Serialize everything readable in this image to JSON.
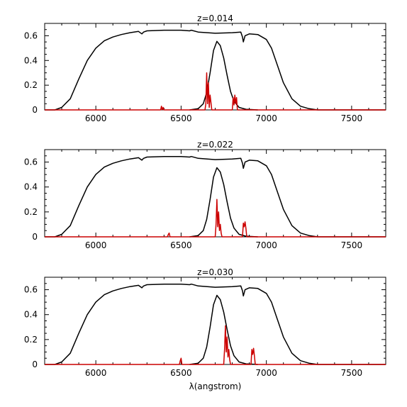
{
  "chart_data": [
    {
      "type": "line",
      "title": "z=0.014",
      "xlabel": "",
      "ylabel": "",
      "xlim": [
        5700,
        7700
      ],
      "ylim": [
        0,
        0.7
      ],
      "xticks": [
        6000,
        6500,
        7000,
        7500
      ],
      "yticks": [
        0,
        0.2,
        0.4,
        0.6
      ],
      "grid": false,
      "series": [
        {
          "color": "#000000",
          "x": [
            5700,
            5760,
            5800,
            5850,
            5900,
            5950,
            6000,
            6050,
            6100,
            6150,
            6200,
            6250,
            6270,
            6280,
            6300,
            6400,
            6500,
            6550,
            6560,
            6600,
            6700,
            6800,
            6850,
            6860,
            6865,
            6875,
            6900,
            6950,
            7000,
            7030,
            7060,
            7100,
            7150,
            7200,
            7250,
            7300,
            7400,
            7500,
            7700
          ],
          "y": [
            0,
            0,
            0.02,
            0.09,
            0.25,
            0.4,
            0.5,
            0.56,
            0.59,
            0.61,
            0.625,
            0.635,
            0.615,
            0.63,
            0.64,
            0.645,
            0.645,
            0.64,
            0.645,
            0.63,
            0.62,
            0.625,
            0.63,
            0.59,
            0.55,
            0.6,
            0.615,
            0.61,
            0.57,
            0.5,
            0.38,
            0.22,
            0.09,
            0.03,
            0.01,
            0,
            0,
            0,
            0
          ]
        },
        {
          "color": "#000000",
          "x": [
            6550,
            6600,
            6630,
            6650,
            6670,
            6690,
            6710,
            6730,
            6750,
            6770,
            6790,
            6810,
            6840,
            6880,
            6950
          ],
          "y": [
            0,
            0.01,
            0.05,
            0.14,
            0.3,
            0.48,
            0.555,
            0.52,
            0.42,
            0.28,
            0.15,
            0.07,
            0.02,
            0.005,
            0
          ]
        },
        {
          "color": "#cc0000",
          "x": [
            5700,
            6380,
            6385,
            6390,
            6395,
            6400,
            6640,
            6645,
            6650,
            6655,
            6660,
            6665,
            6670,
            6675,
            6680,
            6800,
            6805,
            6810,
            6815,
            6820,
            6825,
            6830,
            7700
          ],
          "y": [
            0,
            0,
            0.03,
            0,
            0.02,
            0,
            0,
            0.05,
            0.3,
            0.05,
            0.22,
            0.02,
            0.12,
            0.06,
            0,
            0,
            0.1,
            0.04,
            0.12,
            0.05,
            0.1,
            0,
            0
          ]
        }
      ]
    },
    {
      "type": "line",
      "title": "z=0.022",
      "xlabel": "",
      "ylabel": "",
      "xlim": [
        5700,
        7700
      ],
      "ylim": [
        0,
        0.7
      ],
      "xticks": [
        6000,
        6500,
        7000,
        7500
      ],
      "yticks": [
        0,
        0.2,
        0.4,
        0.6
      ],
      "grid": false,
      "series": [
        {
          "color": "#000000",
          "x": [
            5700,
            5760,
            5800,
            5850,
            5900,
            5950,
            6000,
            6050,
            6100,
            6150,
            6200,
            6250,
            6270,
            6280,
            6300,
            6400,
            6500,
            6550,
            6560,
            6600,
            6700,
            6800,
            6850,
            6860,
            6865,
            6875,
            6900,
            6950,
            7000,
            7030,
            7060,
            7100,
            7150,
            7200,
            7250,
            7300,
            7400,
            7500,
            7700
          ],
          "y": [
            0,
            0,
            0.02,
            0.09,
            0.25,
            0.4,
            0.5,
            0.56,
            0.59,
            0.61,
            0.625,
            0.635,
            0.615,
            0.63,
            0.64,
            0.645,
            0.645,
            0.64,
            0.645,
            0.63,
            0.62,
            0.625,
            0.63,
            0.59,
            0.55,
            0.6,
            0.615,
            0.61,
            0.57,
            0.5,
            0.38,
            0.22,
            0.09,
            0.03,
            0.01,
            0,
            0,
            0,
            0
          ]
        },
        {
          "color": "#000000",
          "x": [
            6550,
            6600,
            6630,
            6650,
            6670,
            6690,
            6710,
            6730,
            6750,
            6770,
            6790,
            6810,
            6840,
            6880,
            6950
          ],
          "y": [
            0,
            0.01,
            0.05,
            0.14,
            0.3,
            0.48,
            0.555,
            0.52,
            0.42,
            0.28,
            0.15,
            0.07,
            0.02,
            0.005,
            0
          ]
        },
        {
          "color": "#cc0000",
          "x": [
            5700,
            6420,
            6425,
            6430,
            6435,
            6700,
            6705,
            6710,
            6715,
            6720,
            6725,
            6730,
            6735,
            6740,
            6860,
            6865,
            6870,
            6875,
            6880,
            6885,
            7700
          ],
          "y": [
            0,
            0,
            0.02,
            0.03,
            0,
            0,
            0.1,
            0.3,
            0.08,
            0.2,
            0.05,
            0.1,
            0.03,
            0,
            0,
            0.11,
            0.08,
            0.12,
            0.07,
            0,
            0
          ]
        }
      ]
    },
    {
      "type": "line",
      "title": "z=0.030",
      "xlabel": "λ(angstrom)",
      "ylabel": "",
      "xlim": [
        5700,
        7700
      ],
      "ylim": [
        0,
        0.7
      ],
      "xticks": [
        6000,
        6500,
        7000,
        7500
      ],
      "yticks": [
        0,
        0.2,
        0.4,
        0.6
      ],
      "grid": false,
      "series": [
        {
          "color": "#000000",
          "x": [
            5700,
            5760,
            5800,
            5850,
            5900,
            5950,
            6000,
            6050,
            6100,
            6150,
            6200,
            6250,
            6270,
            6280,
            6300,
            6400,
            6500,
            6550,
            6560,
            6600,
            6700,
            6800,
            6850,
            6860,
            6865,
            6875,
            6900,
            6950,
            7000,
            7030,
            7060,
            7100,
            7150,
            7200,
            7250,
            7300,
            7400,
            7500,
            7700
          ],
          "y": [
            0,
            0,
            0.02,
            0.09,
            0.25,
            0.4,
            0.5,
            0.56,
            0.59,
            0.61,
            0.625,
            0.635,
            0.615,
            0.63,
            0.64,
            0.645,
            0.645,
            0.64,
            0.645,
            0.63,
            0.62,
            0.625,
            0.63,
            0.59,
            0.55,
            0.6,
            0.615,
            0.61,
            0.57,
            0.5,
            0.38,
            0.22,
            0.09,
            0.03,
            0.01,
            0,
            0,
            0,
            0
          ]
        },
        {
          "color": "#000000",
          "x": [
            6550,
            6600,
            6630,
            6650,
            6670,
            6690,
            6710,
            6730,
            6750,
            6770,
            6790,
            6810,
            6840,
            6880,
            6950
          ],
          "y": [
            0,
            0.01,
            0.05,
            0.14,
            0.3,
            0.48,
            0.555,
            0.52,
            0.42,
            0.28,
            0.15,
            0.07,
            0.02,
            0.005,
            0
          ]
        },
        {
          "color": "#cc0000",
          "x": [
            5700,
            6490,
            6495,
            6500,
            6505,
            6750,
            6755,
            6760,
            6765,
            6770,
            6775,
            6780,
            6785,
            6790,
            6910,
            6915,
            6920,
            6925,
            6930,
            6935,
            7700
          ],
          "y": [
            0,
            0,
            0.03,
            0.05,
            0,
            0,
            0.12,
            0.31,
            0.1,
            0.22,
            0.06,
            0.12,
            0.04,
            0,
            0,
            0.12,
            0.08,
            0.13,
            0.07,
            0,
            0
          ]
        }
      ]
    }
  ]
}
